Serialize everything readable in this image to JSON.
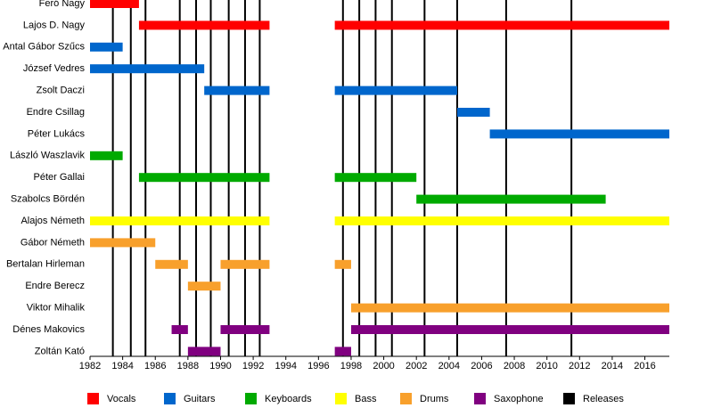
{
  "chart_data": {
    "type": "timeline",
    "xlim": [
      1982,
      2017.5
    ],
    "xticks": [
      1982,
      1984,
      1986,
      1988,
      1990,
      1992,
      1994,
      1996,
      1998,
      2000,
      2002,
      2004,
      2006,
      2008,
      2010,
      2012,
      2014,
      2016
    ],
    "series": [
      {
        "name": "Vocals",
        "color": "#ff0000",
        "members": [
          {
            "name": "Feró Nagy",
            "periods": [
              [
                1982,
                1985
              ]
            ]
          },
          {
            "name": "Lajos D. Nagy",
            "periods": [
              [
                1985,
                1993
              ],
              [
                1997,
                2017.5
              ]
            ]
          }
        ]
      },
      {
        "name": "Guitars",
        "color": "#0066cc",
        "members": [
          {
            "name": "Antal Gábor Szűcs",
            "periods": [
              [
                1982,
                1984
              ]
            ]
          },
          {
            "name": "József Vedres",
            "periods": [
              [
                1982,
                1989
              ]
            ]
          },
          {
            "name": "Zsolt Daczi",
            "periods": [
              [
                1989,
                1993
              ],
              [
                1997,
                2004.5
              ]
            ]
          },
          {
            "name": "Endre Csillag",
            "periods": [
              [
                2004.5,
                2006.5
              ]
            ]
          },
          {
            "name": "Péter Lukács",
            "periods": [
              [
                2006.5,
                2017.5
              ]
            ]
          }
        ]
      },
      {
        "name": "Keyboards",
        "color": "#00aa00",
        "members": [
          {
            "name": "László Waszlavik",
            "periods": [
              [
                1982,
                1984
              ]
            ]
          },
          {
            "name": "Péter Gallai",
            "periods": [
              [
                1985,
                1993
              ],
              [
                1997,
                2002
              ]
            ]
          },
          {
            "name": "Szabolcs Bördén",
            "periods": [
              [
                2002,
                2013.6
              ]
            ]
          }
        ]
      },
      {
        "name": "Bass",
        "color": "#ffff00",
        "members": [
          {
            "name": "Alajos Németh",
            "periods": [
              [
                1982,
                1993
              ],
              [
                1997,
                2017.5
              ]
            ]
          }
        ]
      },
      {
        "name": "Drums",
        "color": "#f8a02c",
        "members": [
          {
            "name": "Gábor Németh",
            "periods": [
              [
                1982,
                1986
              ]
            ]
          },
          {
            "name": "Bertalan Hirleman",
            "periods": [
              [
                1986,
                1988
              ],
              [
                1990,
                1993
              ],
              [
                1997,
                1998
              ]
            ]
          },
          {
            "name": "Endre Berecz",
            "periods": [
              [
                1988,
                1990
              ]
            ]
          },
          {
            "name": "Viktor Mihalik",
            "periods": [
              [
                1998,
                2017.5
              ]
            ]
          }
        ]
      },
      {
        "name": "Saxophone",
        "color": "#800080",
        "members": [
          {
            "name": "Dénes Makovics",
            "periods": [
              [
                1987,
                1988
              ],
              [
                1990,
                1993
              ],
              [
                1998,
                2017.5
              ]
            ]
          },
          {
            "name": "Zoltán Kató",
            "periods": [
              [
                1988,
                1990
              ],
              [
                1997,
                1998
              ]
            ]
          }
        ]
      }
    ],
    "releases": {
      "name": "Releases",
      "color": "#000000",
      "values": [
        1983.4,
        1984.5,
        1985.4,
        1987.5,
        1988.5,
        1989.4,
        1990.5,
        1991.5,
        1992.4,
        1997.5,
        1998.5,
        1999.5,
        2000.5,
        2002.5,
        2004.5,
        2007.5,
        2011.5
      ]
    }
  }
}
